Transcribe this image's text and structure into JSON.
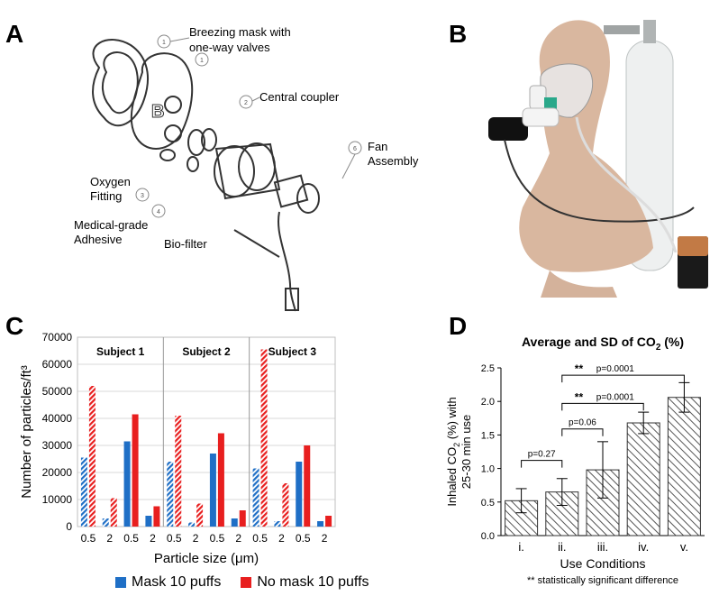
{
  "panels": {
    "a": {
      "letter": "A",
      "labels": {
        "mask": "Breezing mask with\none-way valves",
        "coupler": "Central coupler",
        "fan": "Fan\nAssembly",
        "oxygen": "Oxygen\nFitting",
        "adhesive": "Medical-grade\nAdhesive",
        "biofilter": "Bio-filter"
      },
      "callouts": [
        "1",
        "2",
        "3",
        "4",
        "5",
        "6"
      ]
    },
    "b": {
      "letter": "B"
    },
    "c": {
      "letter": "C"
    },
    "d": {
      "letter": "D"
    }
  },
  "legend": {
    "mask": "Mask 10 puffs",
    "nomask": "No mask 10 puffs"
  },
  "colors": {
    "mask": "#1f6fc6",
    "nomask": "#e81f1f",
    "grid": "#d9d9d9"
  },
  "chart_data": [
    {
      "type": "bar",
      "title": "",
      "ylabel": "Number of particles/ft³",
      "xlabel": "Particle size (μm)",
      "ylim": [
        0,
        70000
      ],
      "yticks": [
        "0",
        "10000",
        "20000",
        "30000",
        "40000",
        "50000",
        "60000",
        "70000"
      ],
      "groups": [
        "Subject 1",
        "Subject 2",
        "Subject 3"
      ],
      "categories": [
        "0.5",
        "2",
        "0.5",
        "2"
      ],
      "note": "",
      "series_bars": [
        [
          {
            "m": 25500,
            "n": 52000,
            "h": true
          },
          {
            "m": 3000,
            "n": 10500,
            "h": true
          },
          {
            "m": 31500,
            "n": 41500,
            "h": false
          },
          {
            "m": 4000,
            "n": 7500,
            "h": false
          }
        ],
        [
          {
            "m": 24000,
            "n": 41000,
            "h": true
          },
          {
            "m": 1500,
            "n": 8500,
            "h": true
          },
          {
            "m": 27000,
            "n": 34500,
            "h": false
          },
          {
            "m": 3000,
            "n": 6000,
            "h": false
          }
        ],
        [
          {
            "m": 21500,
            "n": 65500,
            "h": true
          },
          {
            "m": 2000,
            "n": 16000,
            "h": true
          },
          {
            "m": 24000,
            "n": 30000,
            "h": false
          },
          {
            "m": 2000,
            "n": 4000,
            "h": false
          }
        ]
      ],
      "series": [
        {
          "name": "Mask 10 puffs"
        },
        {
          "name": "No mask 10 puffs"
        }
      ]
    },
    {
      "type": "bar",
      "title": "Average and SD of CO",
      "title_sub": "2",
      "title_tail": " (%)",
      "ylabel_line1": "Inhaled CO",
      "ylabel_sub": "2",
      "ylabel_tail": " (%) with",
      "ylabel_line2": "25-30 min use",
      "xlabel": "Use Conditions",
      "footnote": "** statistically significant difference",
      "ylim": [
        0,
        2.5
      ],
      "yticks": [
        "0.0",
        "0.5",
        "1.0",
        "1.5",
        "2.0",
        "2.5"
      ],
      "categories": [
        "i.",
        "ii.",
        "iii.",
        "iv.",
        "v."
      ],
      "values": [
        0.52,
        0.65,
        0.98,
        1.68,
        2.06
      ],
      "errors": [
        0.18,
        0.2,
        0.42,
        0.16,
        0.22
      ],
      "brackets": [
        {
          "from": 0,
          "to": 1,
          "label": "p=0.27",
          "stars": "",
          "y": 1.12
        },
        {
          "from": 1,
          "to": 2,
          "label": "p=0.06",
          "stars": "",
          "y": 1.59
        },
        {
          "from": 1,
          "to": 3,
          "label": "p=0.0001",
          "stars": "**",
          "y": 1.97
        },
        {
          "from": 1,
          "to": 4,
          "label": "p=0.0001",
          "stars": "**",
          "y": 2.39
        }
      ]
    }
  ]
}
